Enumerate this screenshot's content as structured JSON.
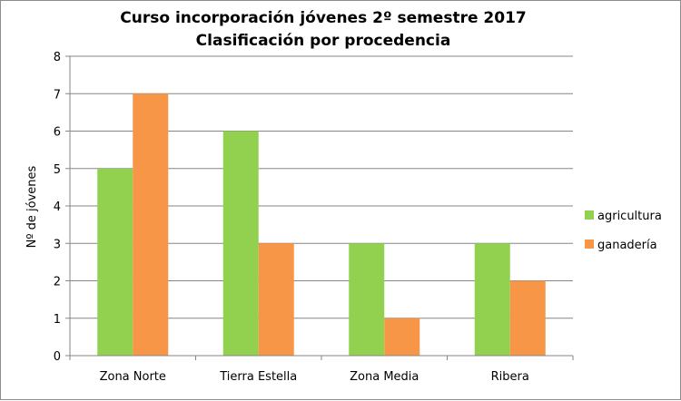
{
  "chart_data": {
    "type": "bar",
    "title": "Curso incorporación jóvenes 2º semestre 2017",
    "subtitle": "Clasificación por procedencia",
    "xlabel": "",
    "ylabel": "Nº de jóvenes",
    "ylim": [
      0,
      8
    ],
    "yticks": [
      "0",
      "1",
      "2",
      "3",
      "4",
      "5",
      "6",
      "7",
      "8"
    ],
    "grid": true,
    "legend_position": "right",
    "categories": [
      "Zona Norte",
      "Tierra Estella",
      "Zona Media",
      "Ribera"
    ],
    "series": [
      {
        "name": "agricultura",
        "color": "#92d050",
        "values": [
          5,
          6,
          3,
          3
        ]
      },
      {
        "name": "ganadería",
        "color": "#f79646",
        "values": [
          7,
          3,
          1,
          2
        ]
      }
    ]
  }
}
